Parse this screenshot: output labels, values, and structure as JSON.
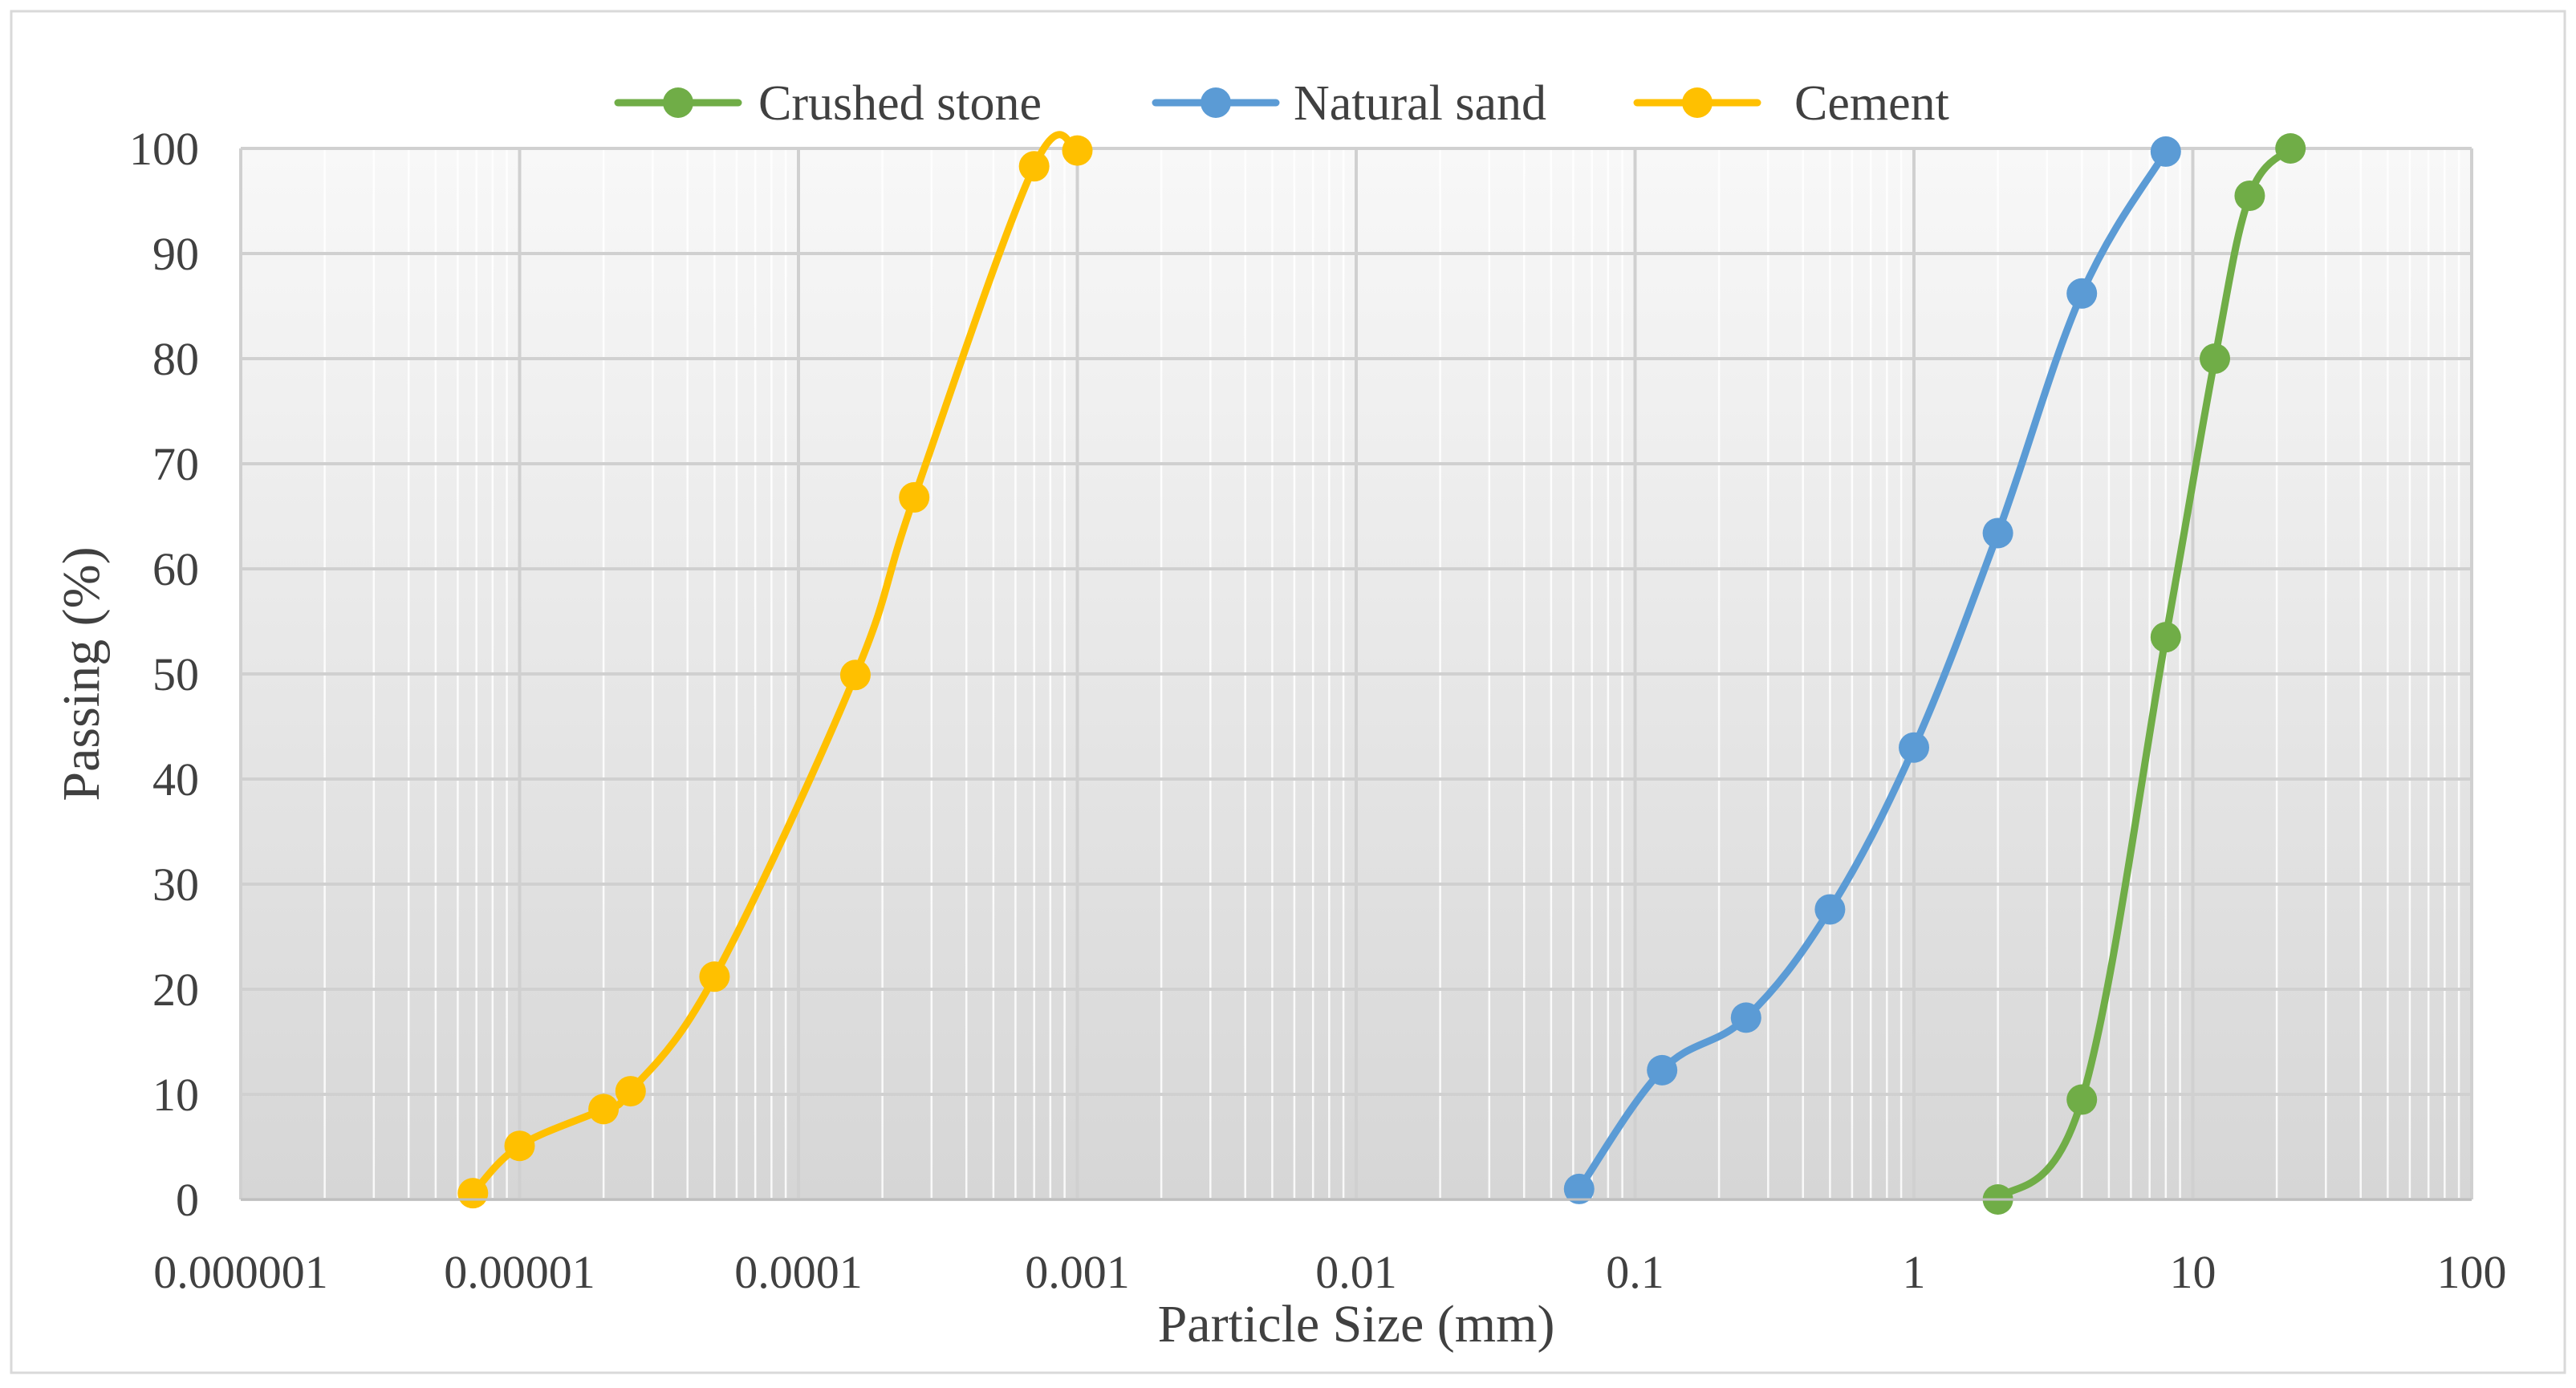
{
  "chart_data": {
    "type": "scatter",
    "xlabel": "Particle Size (mm)",
    "ylabel": "Passing (%)",
    "x_scale": "log",
    "xlim": [
      1e-06,
      100
    ],
    "ylim": [
      0,
      100
    ],
    "x_ticks": [
      {
        "value": 1e-06,
        "label": "0.000001"
      },
      {
        "value": 1e-05,
        "label": "0.00001"
      },
      {
        "value": 0.0001,
        "label": "0.0001"
      },
      {
        "value": 0.001,
        "label": "0.001"
      },
      {
        "value": 0.01,
        "label": "0.01"
      },
      {
        "value": 0.1,
        "label": "0.1"
      },
      {
        "value": 1,
        "label": "1"
      },
      {
        "value": 10,
        "label": "10"
      },
      {
        "value": 100,
        "label": "100"
      }
    ],
    "y_ticks": [
      0,
      10,
      20,
      30,
      40,
      50,
      60,
      70,
      80,
      90,
      100
    ],
    "grid": true,
    "legend_position": "top",
    "series": [
      {
        "name": "Crushed stone",
        "color": "#70AD47",
        "x": [
          2,
          4,
          8,
          12,
          16,
          22.4
        ],
        "y": [
          0,
          9.5,
          53.5,
          80,
          95.5,
          100
        ]
      },
      {
        "name": "Natural sand",
        "color": "#5B9BD5",
        "x": [
          0.063,
          0.125,
          0.25,
          0.5,
          1,
          2,
          4,
          8
        ],
        "y": [
          1,
          12.3,
          17.3,
          27.6,
          43,
          63.4,
          86.2,
          99.7
        ]
      },
      {
        "name": "Cement",
        "color": "#FFC000",
        "x": [
          6.8e-06,
          1e-05,
          2e-05,
          2.5e-05,
          5e-05,
          0.00016,
          0.00026,
          0.0007,
          0.001
        ],
        "y": [
          0.6,
          5.1,
          8.6,
          10.3,
          21.2,
          49.9,
          66.8,
          98.3,
          99.8
        ]
      }
    ]
  }
}
